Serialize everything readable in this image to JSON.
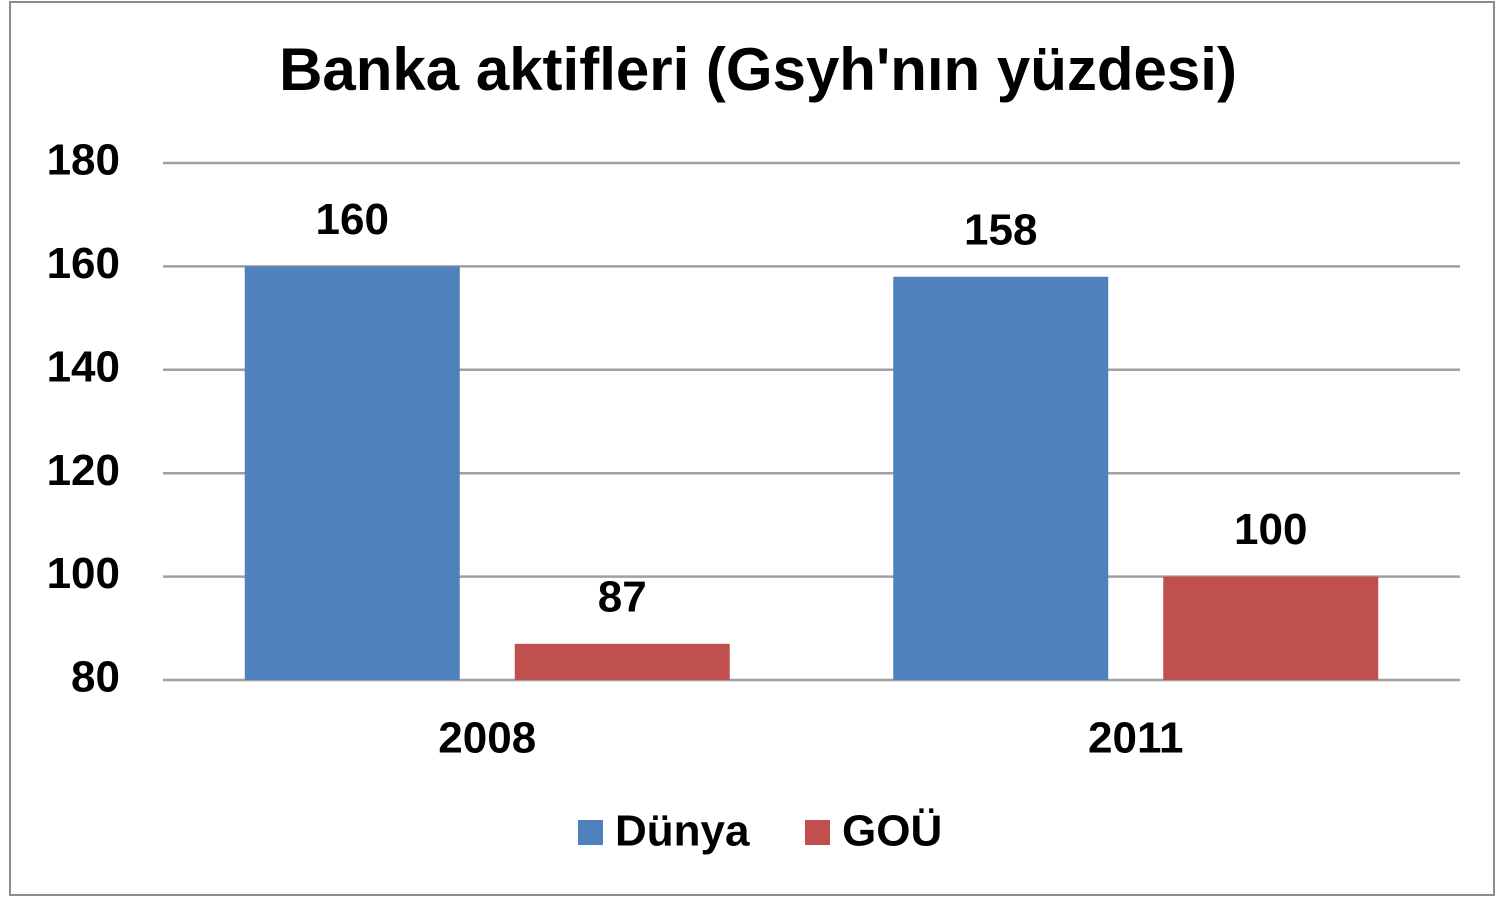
{
  "chart_data": {
    "type": "bar",
    "title": "Banka aktifleri (Gsyh'nın yüzdesi)",
    "categories": [
      "2008",
      "2011"
    ],
    "series": [
      {
        "name": "Dünya",
        "color": "#4f81bd",
        "values": [
          160,
          158
        ]
      },
      {
        "name": "GOÜ",
        "color": "#c0504d",
        "values": [
          87,
          100
        ]
      }
    ],
    "ylim": [
      80,
      180
    ],
    "yticks": [
      80,
      100,
      120,
      140,
      160,
      180
    ],
    "grid": true,
    "legend": "bottom"
  }
}
